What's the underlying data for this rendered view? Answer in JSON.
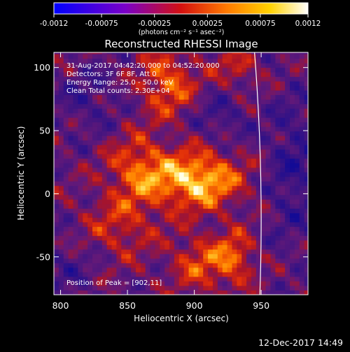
{
  "colorbar": {
    "ticks": [
      "-0.0012",
      "-0.00075",
      "-0.00025",
      "0.00025",
      "0.00075",
      "0.0012"
    ],
    "tick_values": [
      -0.0012,
      -0.00075,
      -0.00025,
      0.00025,
      0.00075,
      0.0012
    ],
    "range": [
      -0.0012,
      0.0012
    ],
    "units_label": "(photons cm⁻² s⁻¹ asec⁻²)",
    "colormap": [
      "#0000ff",
      "#6a00c0",
      "#d01010",
      "#ff8000",
      "#ffd000",
      "#ffffff"
    ]
  },
  "chart_data": {
    "type": "heatmap",
    "title": "Reconstructed RHESSI Image",
    "xlabel": "Heliocentric X (arcsec)",
    "ylabel": "Heliocentric Y (arcsec)",
    "xlim": [
      795,
      985
    ],
    "ylim": [
      -80,
      112
    ],
    "xticks": [
      800,
      850,
      900,
      950
    ],
    "yticks": [
      -50,
      0,
      50,
      100
    ],
    "annotations": [
      "31-Aug-2017 04:42:20.000 to 04:52:20.000",
      "Detectors: 3F 6F 8F, Att 0",
      "Energy Range: 25.0 - 50.0 keV",
      "Clean    Total counts: 2.30E+04"
    ],
    "peak_label": "Position of Peak = [902,11]",
    "peak": [
      902,
      11
    ],
    "limb_x_at_ymax": 945,
    "limb_x_at_ymin": 949
  },
  "footer": {
    "timestamp": "12-Dec-2017 14:49"
  }
}
